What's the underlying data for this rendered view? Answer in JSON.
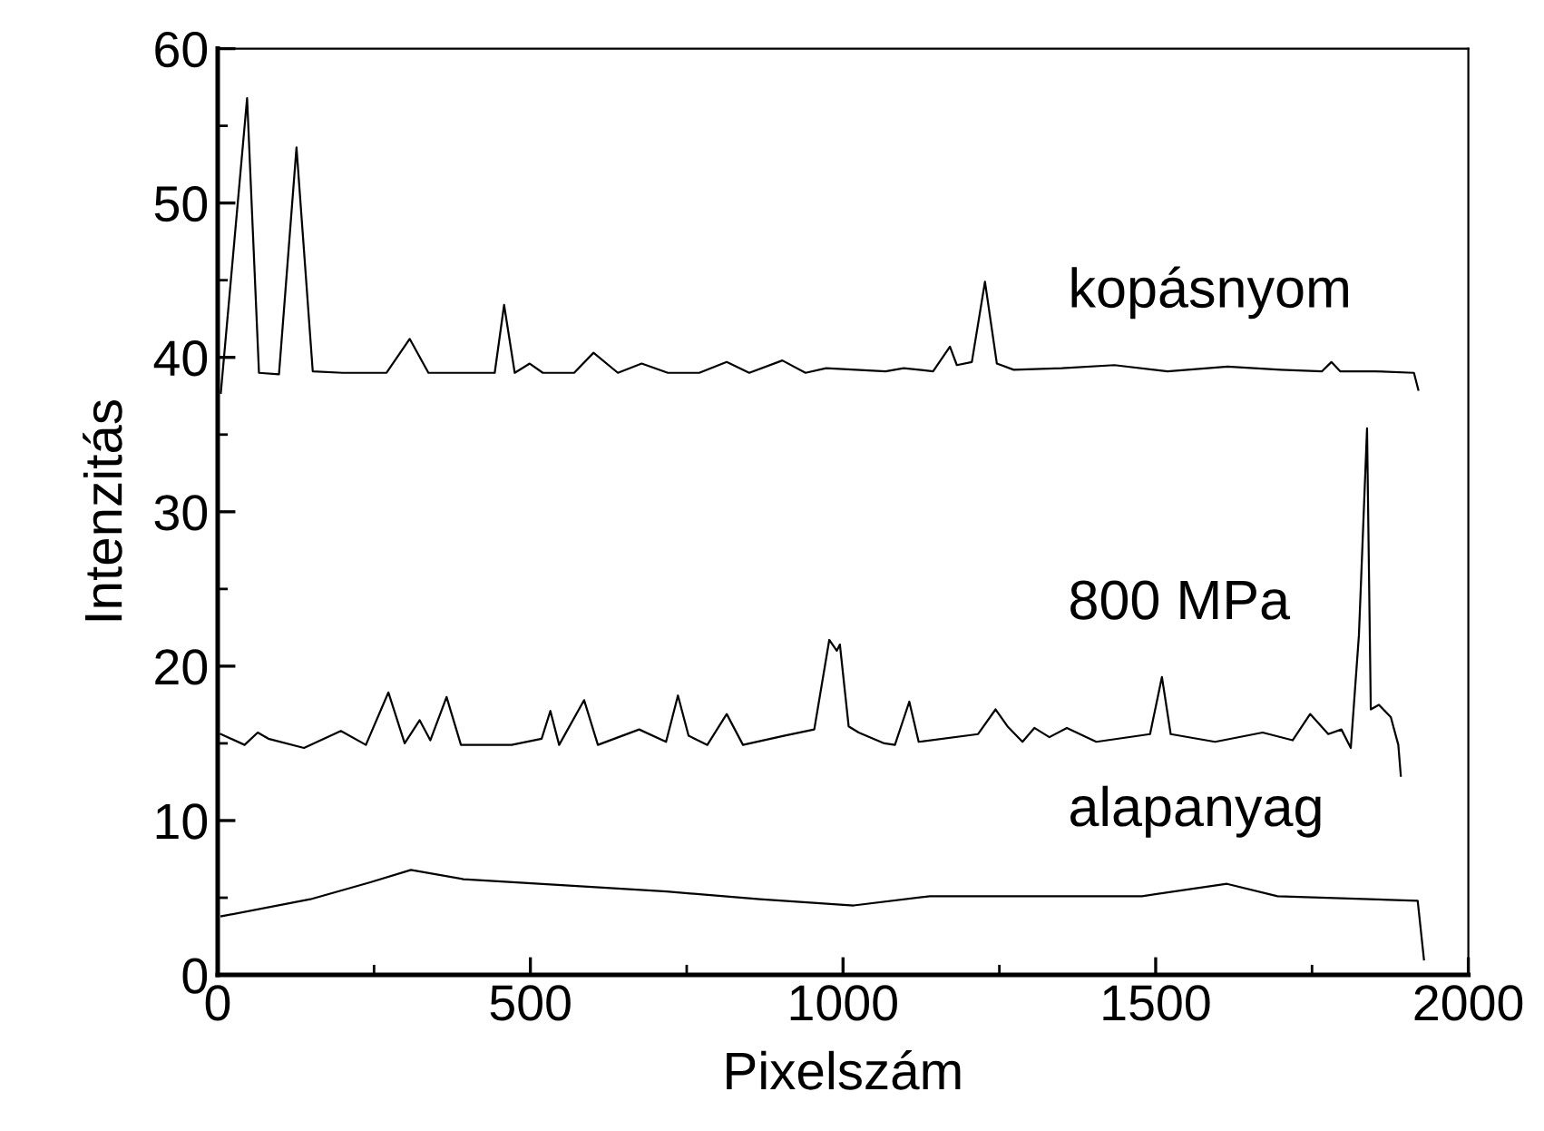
{
  "chart_data": {
    "type": "line",
    "xlabel": "Pixelszám",
    "ylabel": "Intenzitás",
    "xlim": [
      0,
      2000
    ],
    "ylim": [
      0,
      60
    ],
    "xticks": [
      0,
      500,
      1000,
      1500,
      2000
    ],
    "yticks": [
      0,
      10,
      20,
      30,
      40,
      50,
      60
    ],
    "grid": false,
    "legend": false,
    "marker": "none",
    "line_style": "solid",
    "series": [
      {
        "name": "kopásnyom",
        "color": "#000000",
        "x": [
          5,
          47,
          66,
          98,
          126,
          152,
          200,
          270,
          307,
          337,
          400,
          443,
          458,
          475,
          499,
          520,
          570,
          601,
          640,
          678,
          720,
          770,
          814,
          850,
          903,
          940,
          973,
          1068,
          1097,
          1144,
          1171,
          1182,
          1206,
          1227,
          1246,
          1273,
          1350,
          1434,
          1519,
          1615,
          1700,
          1766,
          1781,
          1795,
          1850,
          1913,
          1920
        ],
        "values": [
          37.7,
          56.8,
          39.0,
          38.9,
          53.6,
          39.1,
          39.0,
          39.0,
          41.2,
          39.0,
          39.0,
          39.0,
          43.4,
          39.0,
          39.6,
          39.0,
          39.0,
          40.3,
          39.0,
          39.6,
          39.0,
          39.0,
          39.7,
          39.0,
          39.8,
          39.0,
          39.3,
          39.1,
          39.3,
          39.1,
          40.7,
          39.5,
          39.7,
          44.9,
          39.6,
          39.2,
          39.3,
          39.5,
          39.1,
          39.4,
          39.2,
          39.1,
          39.7,
          39.1,
          39.1,
          39.0,
          37.9
        ]
      },
      {
        "name": "800 MPa",
        "color": "#000000",
        "x": [
          5,
          43,
          64,
          81,
          138,
          197,
          237,
          273,
          299,
          323,
          340,
          366,
          389,
          470,
          518,
          532,
          546,
          586,
          608,
          674,
          717,
          736,
          753,
          783,
          814,
          840,
          907,
          954,
          978,
          990,
          995,
          1009,
          1025,
          1066,
          1083,
          1106,
          1121,
          1216,
          1244,
          1263,
          1287,
          1306,
          1330,
          1358,
          1405,
          1491,
          1510,
          1524,
          1595,
          1671,
          1719,
          1747,
          1776,
          1797,
          1812,
          1825,
          1838,
          1844,
          1857,
          1876,
          1888,
          1892
        ],
        "values": [
          15.6,
          14.9,
          15.7,
          15.3,
          14.7,
          15.8,
          14.9,
          18.3,
          15.0,
          16.5,
          15.2,
          18.0,
          14.9,
          14.9,
          15.3,
          17.1,
          14.9,
          17.8,
          14.9,
          15.9,
          15.1,
          18.1,
          15.5,
          14.9,
          16.9,
          14.9,
          15.5,
          15.9,
          21.7,
          21.0,
          21.4,
          16.1,
          15.7,
          15.0,
          14.9,
          17.7,
          15.1,
          15.6,
          17.2,
          16.1,
          15.1,
          16.0,
          15.4,
          16.0,
          15.1,
          15.6,
          19.3,
          15.6,
          15.1,
          15.7,
          15.2,
          16.9,
          15.6,
          15.9,
          14.7,
          22.0,
          35.4,
          17.2,
          17.5,
          16.7,
          14.9,
          12.9
        ]
      },
      {
        "name": "alapanyag",
        "color": "#000000",
        "x": [
          6,
          148,
          244,
          309,
          393,
          556,
          718,
          867,
          1017,
          1139,
          1342,
          1478,
          1614,
          1695,
          1919,
          1929
        ],
        "values": [
          3.8,
          4.9,
          6.0,
          6.8,
          6.2,
          5.8,
          5.4,
          4.9,
          4.5,
          5.1,
          5.1,
          5.1,
          5.9,
          5.1,
          4.8,
          1.0
        ]
      }
    ]
  }
}
